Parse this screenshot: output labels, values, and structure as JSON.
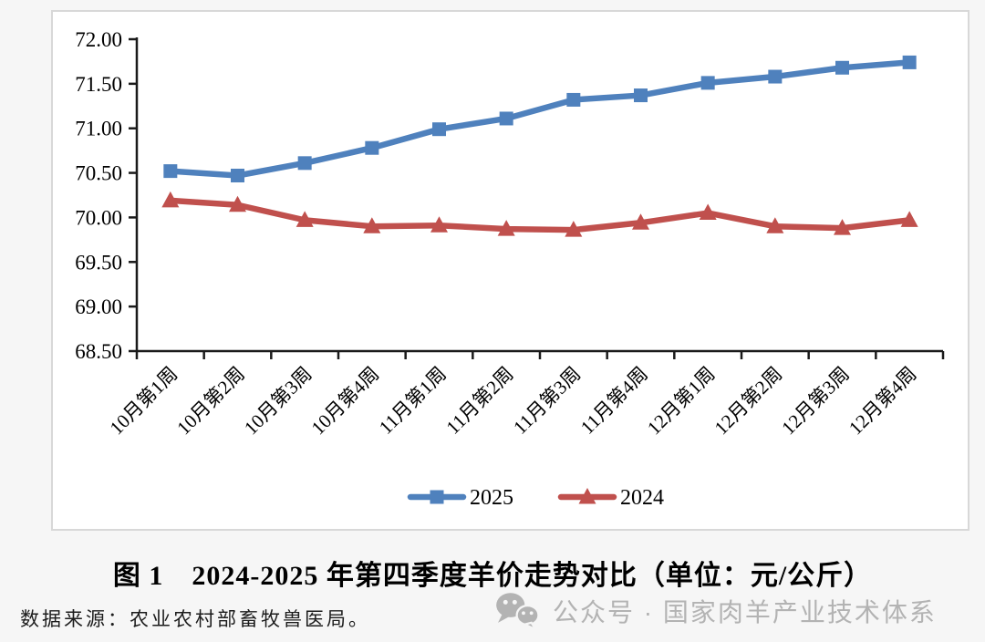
{
  "colors": {
    "series_2025": "#4F81BD",
    "series_2024": "#C0504D",
    "axis": "#1a1a1a",
    "panel_border": "#d8d8d8",
    "watermark_gray": "#b3b3b3"
  },
  "chart_data": {
    "type": "line",
    "title": "图 1　2024-2025 年第四季度羊价走势对比（单位：元/公斤）",
    "categories": [
      "10月第1周",
      "10月第2周",
      "10月第3周",
      "10月第4周",
      "11月第1周",
      "11月第2周",
      "11月第3周",
      "11月第4周",
      "12月第1周",
      "12月第2周",
      "12月第3周",
      "12月第4周"
    ],
    "series": [
      {
        "name": "2025",
        "color": "#4F81BD",
        "marker": "square",
        "values": [
          70.52,
          70.47,
          70.61,
          70.78,
          70.99,
          71.11,
          71.32,
          71.37,
          71.51,
          71.58,
          71.68,
          71.74
        ]
      },
      {
        "name": "2024",
        "color": "#C0504D",
        "marker": "triangle",
        "values": [
          70.19,
          70.14,
          69.97,
          69.9,
          69.91,
          69.87,
          69.86,
          69.94,
          70.05,
          69.9,
          69.88,
          69.97
        ]
      }
    ],
    "xlabel": "",
    "ylabel": "",
    "ylim": [
      68.5,
      72.0
    ],
    "ytick_step": 0.5,
    "ytick_labels": [
      "68.50",
      "69.00",
      "69.50",
      "70.00",
      "70.50",
      "71.00",
      "71.50",
      "72.00"
    ],
    "grid": false,
    "legend_position": "bottom-center"
  },
  "caption": {
    "text": "图 1　2024-2025 年第四季度羊价走势对比（单位：元/公斤）"
  },
  "source": {
    "text": "数据来源：农业农村部畜牧兽医局。"
  },
  "watermark": {
    "icon": "wechat-icon",
    "text": "公众号 · 国家肉羊产业技术体系"
  }
}
